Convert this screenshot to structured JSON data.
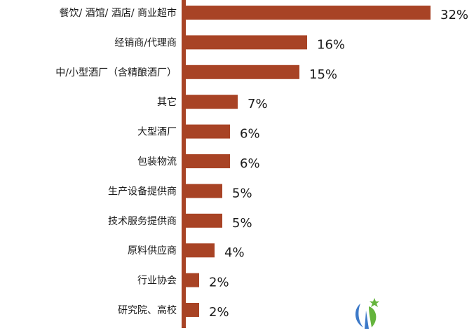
{
  "chart_data": {
    "type": "bar",
    "orientation": "horizontal",
    "categories": [
      "餐饮/ 酒馆/ 酒店/ 商业超市",
      "经销商/代理商",
      "中/小型酒厂（含精酿酒厂）",
      "其它",
      "大型酒厂",
      "包装物流",
      "生产设备提供商",
      "技术服务提供商",
      "原料供应商",
      "行业协会",
      "研究院、高校"
    ],
    "values": [
      32,
      16,
      15,
      7,
      6,
      6,
      5,
      5,
      4,
      2,
      2
    ],
    "value_labels": [
      "32%",
      "16%",
      "15%",
      "7%",
      "6%",
      "6%",
      "5%",
      "5%",
      "4%",
      "2%",
      "2%"
    ],
    "unit": "%",
    "xlim": [
      0,
      32
    ],
    "grid": false,
    "legend": "none",
    "colors": {
      "bar": "#A84325",
      "axis": "#A84325",
      "text": "#1a1a1a"
    }
  },
  "logo": {
    "name": "leaf-logo",
    "colors": [
      "#3C79C8",
      "#64B43C"
    ]
  }
}
